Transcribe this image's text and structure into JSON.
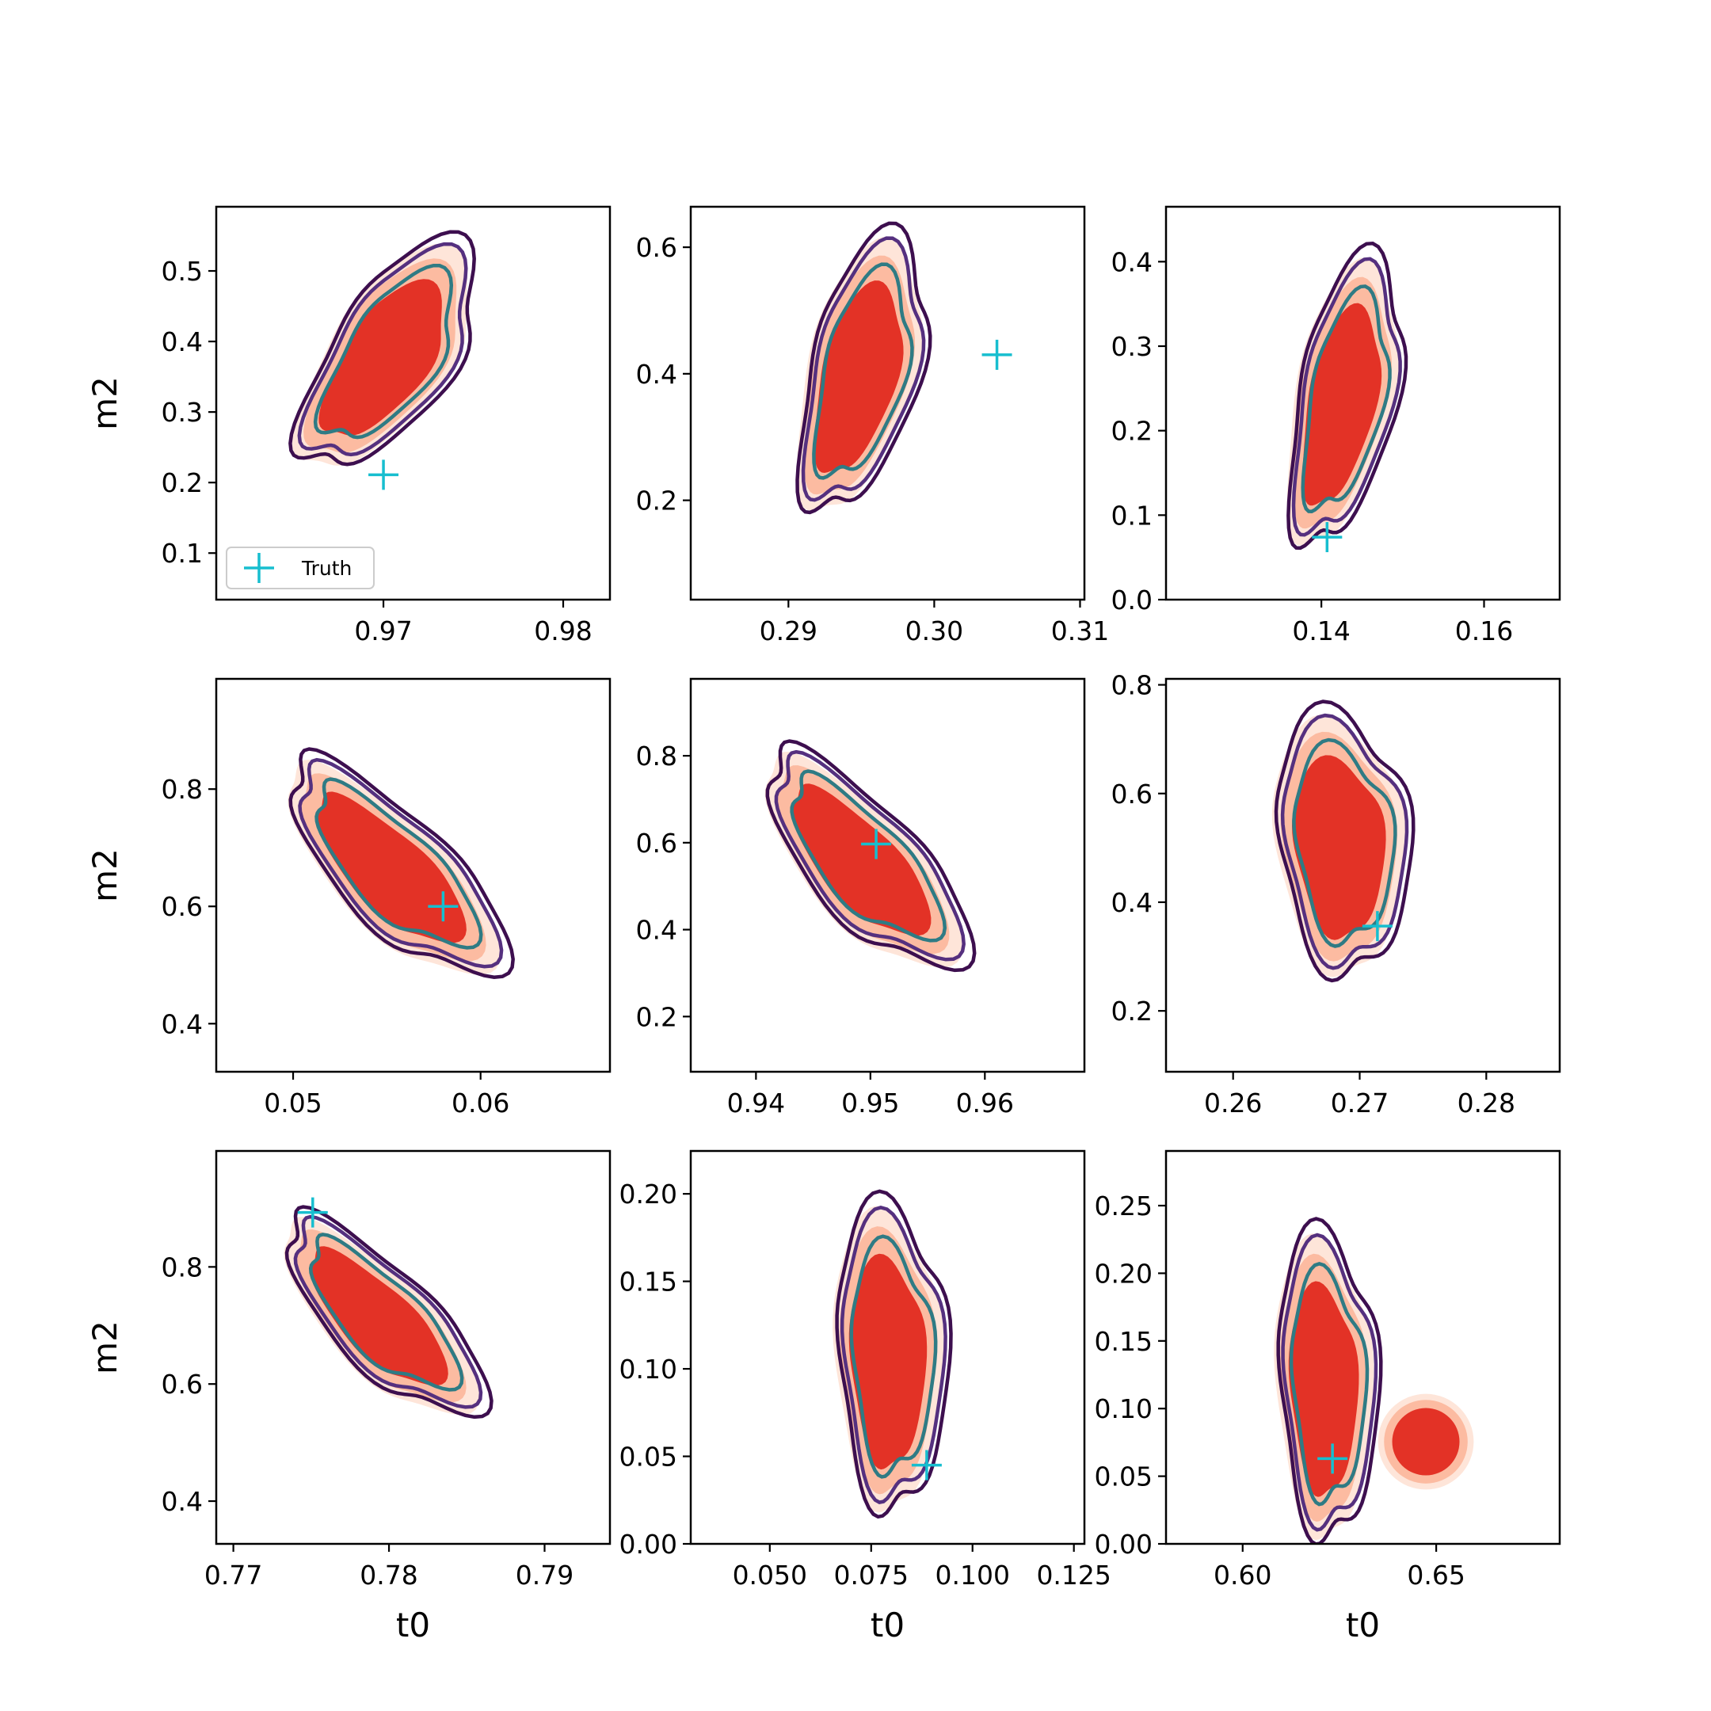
{
  "figure": {
    "background": "#ffffff"
  },
  "legend": {
    "label": "Truth",
    "marker_color": "#17becf"
  },
  "colors": {
    "fill_outer": "#fee5d9",
    "fill_mid": "#fcbba1",
    "fill_inner": "#e33226",
    "line_outer": "#3d0f4f",
    "line_mid": "#55307f",
    "line_inner": "#2f7b84",
    "truth": "#17becf"
  },
  "chart_data": [
    {
      "type": "scatter",
      "xlabel": "",
      "ylabel": "m2",
      "xlim": [
        0.9607,
        0.9826
      ],
      "ylim": [
        0.034,
        0.591
      ],
      "xticks": [
        0.97,
        0.98
      ],
      "xtick_labels": [
        "0.97",
        "0.98"
      ],
      "yticks": [
        0.1,
        0.2,
        0.3,
        0.4,
        0.5
      ],
      "ytick_labels": [
        "0.1",
        "0.2",
        "0.3",
        "0.4",
        "0.5"
      ],
      "truth": {
        "x": 0.97,
        "y": 0.211
      },
      "legend": true
    },
    {
      "type": "scatter",
      "xlabel": "",
      "ylabel": "",
      "xlim": [
        0.2833,
        0.3103
      ],
      "ylim": [
        0.043,
        0.664
      ],
      "xticks": [
        0.29,
        0.3,
        0.31
      ],
      "xtick_labels": [
        "0.29",
        "0.30",
        "0.31"
      ],
      "yticks": [
        0.2,
        0.4,
        0.6
      ],
      "ytick_labels": [
        "0.2",
        "0.4",
        "0.6"
      ],
      "truth": {
        "x": 0.3043,
        "y": 0.43
      }
    },
    {
      "type": "scatter",
      "xlabel": "",
      "ylabel": "",
      "xlim": [
        0.1209,
        0.1693
      ],
      "ylim": [
        0.0,
        0.465
      ],
      "xticks": [
        0.14,
        0.16
      ],
      "xtick_labels": [
        "0.14",
        "0.16"
      ],
      "yticks": [
        0.0,
        0.1,
        0.2,
        0.3,
        0.4
      ],
      "ytick_labels": [
        "0.0",
        "0.1",
        "0.2",
        "0.3",
        "0.4"
      ],
      "truth": {
        "x": 0.1407,
        "y": 0.074
      }
    },
    {
      "type": "scatter",
      "xlabel": "",
      "ylabel": "m2",
      "xlim": [
        0.0459,
        0.0669
      ],
      "ylim": [
        0.318,
        0.988
      ],
      "xticks": [
        0.05,
        0.06
      ],
      "xtick_labels": [
        "0.05",
        "0.06"
      ],
      "yticks": [
        0.4,
        0.6,
        0.8
      ],
      "ytick_labels": [
        "0.4",
        "0.6",
        "0.8"
      ],
      "truth": {
        "x": 0.058,
        "y": 0.6
      }
    },
    {
      "type": "scatter",
      "xlabel": "",
      "ylabel": "",
      "xlim": [
        0.9343,
        0.9687
      ],
      "ylim": [
        0.073,
        0.977
      ],
      "xticks": [
        0.94,
        0.95,
        0.96
      ],
      "xtick_labels": [
        "0.94",
        "0.95",
        "0.96"
      ],
      "yticks": [
        0.2,
        0.4,
        0.6,
        0.8
      ],
      "ytick_labels": [
        "0.2",
        "0.4",
        "0.6",
        "0.8"
      ],
      "truth": {
        "x": 0.9505,
        "y": 0.597
      }
    },
    {
      "type": "scatter",
      "xlabel": "",
      "ylabel": "",
      "xlim": [
        0.2547,
        0.2858
      ],
      "ylim": [
        0.088,
        0.811
      ],
      "xticks": [
        0.26,
        0.27,
        0.28
      ],
      "xtick_labels": [
        "0.26",
        "0.27",
        "0.28"
      ],
      "yticks": [
        0.2,
        0.4,
        0.6,
        0.8
      ],
      "ytick_labels": [
        "0.2",
        "0.4",
        "0.6",
        "0.8"
      ],
      "truth": {
        "x": 0.2714,
        "y": 0.356
      }
    },
    {
      "type": "scatter",
      "xlabel": "t0",
      "ylabel": "m2",
      "xlim": [
        0.7689,
        0.7942
      ],
      "ylim": [
        0.327,
        0.998
      ],
      "xticks": [
        0.77,
        0.78,
        0.79
      ],
      "xtick_labels": [
        "0.77",
        "0.78",
        "0.79"
      ],
      "yticks": [
        0.4,
        0.6,
        0.8
      ],
      "ytick_labels": [
        "0.4",
        "0.6",
        "0.8"
      ],
      "truth": {
        "x": 0.7751,
        "y": 0.893
      }
    },
    {
      "type": "scatter",
      "xlabel": "t0",
      "ylabel": "",
      "xlim": [
        0.0305,
        0.1276
      ],
      "ylim": [
        0.0,
        0.2245
      ],
      "xticks": [
        0.05,
        0.075,
        0.1,
        0.125
      ],
      "xtick_labels": [
        "0.050",
        "0.075",
        "0.100",
        "0.125"
      ],
      "yticks": [
        0.0,
        0.05,
        0.1,
        0.15,
        0.2
      ],
      "ytick_labels": [
        "0.00",
        "0.05",
        "0.10",
        "0.15",
        "0.20"
      ],
      "truth": {
        "x": 0.0887,
        "y": 0.045
      }
    },
    {
      "type": "scatter",
      "xlabel": "t0",
      "ylabel": "",
      "xlim": [
        0.5802,
        0.6819
      ],
      "ylim": [
        0.0,
        0.2904
      ],
      "xticks": [
        0.6,
        0.65
      ],
      "xtick_labels": [
        "0.60",
        "0.65"
      ],
      "yticks": [
        0.0,
        0.05,
        0.1,
        0.15,
        0.2,
        0.25
      ],
      "ytick_labels": [
        "0.00",
        "0.05",
        "0.10",
        "0.15",
        "0.20",
        "0.25"
      ],
      "truth": {
        "x": 0.6232,
        "y": 0.063
      }
    }
  ]
}
